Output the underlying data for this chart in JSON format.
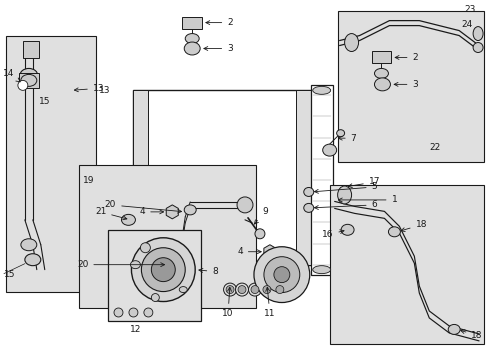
{
  "bg": "#ffffff",
  "dark": "#1a1a1a",
  "gray": "#888888",
  "fill": "#e0e0e0",
  "fig_w": 4.89,
  "fig_h": 3.6,
  "dpi": 100
}
